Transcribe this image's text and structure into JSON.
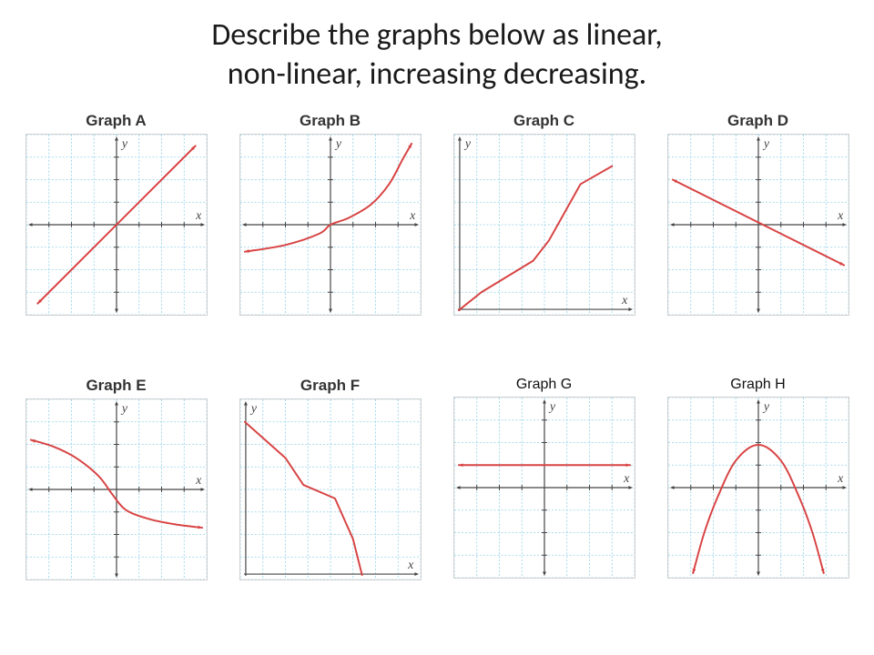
{
  "title_line1": "Describe the graphs below as  linear,",
  "title_line2": "non-linear, increasing  decreasing.",
  "title_color": "#1a1a1a",
  "title_fontsize": 34,
  "panel": {
    "grid_color": "#8fd0e8",
    "grid_dash": "2 2",
    "axis_color": "#444444",
    "curve_color": "#d84444",
    "curve_width": 2,
    "axis_width": 1.2,
    "background": "#ffffff",
    "cell_count": 8,
    "view": {
      "xmin": -4,
      "xmax": 4,
      "ymin": -4,
      "ymax": 4
    }
  },
  "graphs": [
    {
      "label": "Graph A",
      "name": "graph-a",
      "origin": "center",
      "mode": "line",
      "points": [
        [
          -3.5,
          -3.5
        ],
        [
          3.5,
          3.5
        ]
      ],
      "arrows": "both",
      "axis_labels": {
        "x": "x",
        "y": "y"
      }
    },
    {
      "label": "Graph B",
      "name": "graph-b",
      "origin": "center",
      "mode": "curve",
      "points": [
        [
          -3.8,
          -1.2
        ],
        [
          -2,
          -0.9
        ],
        [
          -0.5,
          -0.4
        ],
        [
          0,
          0
        ],
        [
          0.8,
          0.3
        ],
        [
          1.8,
          0.9
        ],
        [
          2.6,
          1.8
        ],
        [
          3.2,
          2.9
        ],
        [
          3.6,
          3.6
        ]
      ],
      "arrows": "both",
      "axis_labels": {
        "x": "x",
        "y": "y"
      }
    },
    {
      "label": "Graph C",
      "name": "graph-c",
      "origin": "bottomleft",
      "mode": "polyline",
      "points": [
        [
          0.2,
          0.2
        ],
        [
          1.2,
          1.0
        ],
        [
          3.5,
          2.4
        ],
        [
          4.2,
          3.3
        ],
        [
          5.6,
          5.8
        ],
        [
          7.0,
          6.6
        ]
      ],
      "arrows": "none",
      "axis_labels": {
        "x": "x",
        "y": "y"
      }
    },
    {
      "label": "Graph D",
      "name": "graph-d",
      "origin": "center",
      "mode": "line",
      "points": [
        [
          -3.8,
          2.0
        ],
        [
          3.8,
          -1.8
        ]
      ],
      "arrows": "both",
      "axis_labels": {
        "x": "x",
        "y": "y"
      }
    },
    {
      "label": "Graph E",
      "name": "graph-e",
      "origin": "center",
      "mode": "curve",
      "points": [
        [
          -3.8,
          2.2
        ],
        [
          -2.8,
          1.9
        ],
        [
          -1.8,
          1.4
        ],
        [
          -0.8,
          0.6
        ],
        [
          -0.2,
          -0.2
        ],
        [
          0.4,
          -0.9
        ],
        [
          1.4,
          -1.3
        ],
        [
          2.6,
          -1.55
        ],
        [
          3.8,
          -1.7
        ]
      ],
      "arrows": "both",
      "axis_labels": {
        "x": "x",
        "y": "y"
      }
    },
    {
      "label": "Graph F",
      "name": "graph-f",
      "origin": "bottomleft",
      "mode": "polyline",
      "points": [
        [
          0.2,
          7.0
        ],
        [
          2.0,
          5.4
        ],
        [
          2.8,
          4.2
        ],
        [
          4.2,
          3.6
        ],
        [
          5.0,
          1.8
        ],
        [
          5.4,
          0.2
        ]
      ],
      "arrows": "none",
      "axis_labels": {
        "x": "x",
        "y": "y"
      }
    },
    {
      "label": "Graph G",
      "name": "graph-g",
      "alt_label": true,
      "origin": "center",
      "mode": "line",
      "points": [
        [
          -3.8,
          1.0
        ],
        [
          3.8,
          1.0
        ]
      ],
      "arrows": "both",
      "axis_labels": {
        "x": "x",
        "y": "y"
      }
    },
    {
      "label": "Graph H",
      "name": "graph-h",
      "alt_label": true,
      "origin": "center",
      "mode": "curve",
      "points": [
        [
          -2.9,
          -3.8
        ],
        [
          -2.4,
          -2.0
        ],
        [
          -1.8,
          -0.4
        ],
        [
          -1.0,
          1.2
        ],
        [
          0,
          1.9
        ],
        [
          1.0,
          1.2
        ],
        [
          1.8,
          -0.4
        ],
        [
          2.4,
          -2.0
        ],
        [
          2.9,
          -3.8
        ]
      ],
      "arrows": "both",
      "axis_labels": {
        "x": "x",
        "y": "y"
      }
    }
  ]
}
